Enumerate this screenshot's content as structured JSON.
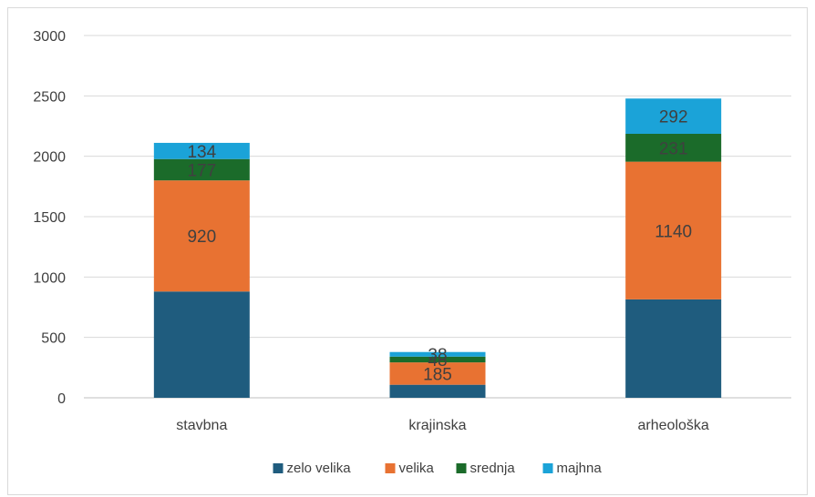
{
  "chart_data": {
    "type": "bar",
    "stacked": true,
    "title": "",
    "xlabel": "",
    "ylabel": "",
    "ylim": [
      0,
      3000
    ],
    "yticks": [
      0,
      500,
      1000,
      1500,
      2000,
      2500,
      3000
    ],
    "grid": true,
    "legend_position": "bottom",
    "categories": [
      "stavbna",
      "krajinska",
      "arheološka"
    ],
    "series": [
      {
        "name": "zelo velika",
        "color": "#1f5c7e",
        "values": [
          880,
          108,
          815
        ],
        "labels": [
          "",
          "",
          ""
        ]
      },
      {
        "name": "velika",
        "color": "#e87232",
        "values": [
          920,
          185,
          1140
        ],
        "labels": [
          "920",
          "185",
          "1140"
        ]
      },
      {
        "name": "srednja",
        "color": "#1b6b2a",
        "values": [
          177,
          48,
          231
        ],
        "labels": [
          "177",
          "48",
          "231"
        ]
      },
      {
        "name": "majhna",
        "color": "#1ba3d8",
        "values": [
          134,
          38,
          292
        ],
        "labels": [
          "134",
          "38",
          "292"
        ]
      }
    ]
  }
}
